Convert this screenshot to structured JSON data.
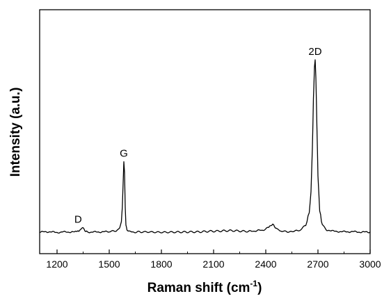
{
  "chart_data": {
    "type": "line",
    "title": "",
    "xlabel": "Raman shift (cm",
    "xlabel_superscript": "-1",
    "xlabel_suffix": ")",
    "ylabel": "Intensity (a.u.)",
    "xlim": [
      1100,
      3000
    ],
    "ylim": [
      0,
      1.1
    ],
    "x_ticks": [
      1200,
      1500,
      1800,
      2100,
      2400,
      2700,
      3000
    ],
    "y_ticks_visible": false,
    "grid": false,
    "legend": "none",
    "line_color": "#000000",
    "series": [
      {
        "x": [
          1100,
          1150,
          1200,
          1250,
          1300,
          1320,
          1335,
          1345,
          1355,
          1365,
          1380,
          1400,
          1450,
          1500,
          1540,
          1560,
          1570,
          1575,
          1580,
          1584,
          1588,
          1592,
          1596,
          1602,
          1615,
          1640,
          1700,
          1800,
          1900,
          2000,
          2100,
          2200,
          2300,
          2380,
          2410,
          2430,
          2440,
          2450,
          2460,
          2480,
          2520,
          2560,
          2600,
          2630,
          2650,
          2660,
          2668,
          2674,
          2680,
          2684,
          2688,
          2694,
          2700,
          2710,
          2725,
          2750,
          2800,
          2850,
          2900,
          2950,
          3000
        ],
        "y": [
          0.02,
          0.022,
          0.018,
          0.021,
          0.02,
          0.024,
          0.034,
          0.046,
          0.036,
          0.025,
          0.019,
          0.02,
          0.021,
          0.022,
          0.028,
          0.042,
          0.08,
          0.16,
          0.3,
          0.42,
          0.36,
          0.16,
          0.06,
          0.03,
          0.022,
          0.02,
          0.021,
          0.019,
          0.02,
          0.021,
          0.025,
          0.028,
          0.024,
          0.03,
          0.042,
          0.056,
          0.064,
          0.054,
          0.04,
          0.026,
          0.022,
          0.024,
          0.032,
          0.062,
          0.13,
          0.25,
          0.5,
          0.78,
          0.96,
          1.0,
          0.9,
          0.62,
          0.34,
          0.14,
          0.06,
          0.032,
          0.024,
          0.022,
          0.022,
          0.02,
          0.02
        ]
      }
    ],
    "annotations": [
      {
        "text": "D",
        "x": 1345,
        "y": 0.046
      },
      {
        "text": "G",
        "x": 1584,
        "y": 0.42
      },
      {
        "text": "2D",
        "x": 2684,
        "y": 1.0
      }
    ]
  }
}
